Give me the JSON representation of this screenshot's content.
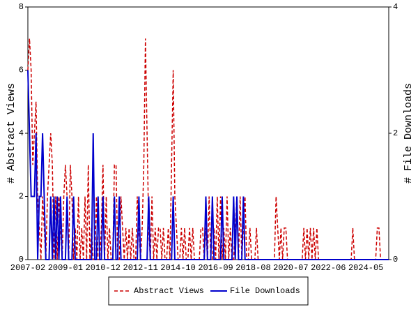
{
  "chart_data": {
    "type": "line",
    "y_label": "# Abstract Views",
    "y2_label": "# File Downloads",
    "categories": [
      "2007-02",
      null,
      null,
      null,
      null,
      null,
      null,
      null,
      null,
      null,
      null,
      null,
      null,
      null,
      null,
      null,
      null,
      null,
      null,
      null,
      null,
      null,
      null,
      "2009-01",
      null,
      null,
      null,
      null,
      null,
      null,
      null,
      null,
      null,
      null,
      null,
      null,
      null,
      null,
      null,
      null,
      null,
      null,
      null,
      null,
      null,
      null,
      "2010-12",
      null,
      null,
      null,
      null,
      null,
      null,
      null,
      null,
      null,
      null,
      null,
      null,
      null,
      null,
      null,
      null,
      null,
      null,
      null,
      null,
      null,
      null,
      "2012-11",
      null,
      null,
      null,
      null,
      null,
      null,
      null,
      null,
      null,
      null,
      null,
      null,
      null,
      null,
      null,
      null,
      null,
      null,
      null,
      null,
      null,
      null,
      "2014-10",
      null,
      null,
      null,
      null,
      null,
      null,
      null,
      null,
      null,
      null,
      null,
      null,
      null,
      null,
      null,
      null,
      null,
      null,
      null,
      null,
      null,
      null,
      "2016-09",
      null,
      null,
      null,
      null,
      null,
      null,
      null,
      null,
      null,
      null,
      null,
      null,
      null,
      null,
      null,
      null,
      null,
      null,
      null,
      null,
      null,
      null,
      "2018-08",
      null,
      null,
      null,
      null,
      null,
      null,
      null,
      null,
      null,
      null,
      null,
      null,
      null,
      null,
      null,
      null,
      null,
      null,
      null,
      null,
      null,
      null,
      "2020-07",
      null,
      null,
      null,
      null,
      null,
      null,
      null,
      null,
      null,
      null,
      null,
      null,
      null,
      null,
      null,
      null,
      null,
      null,
      null,
      null,
      null,
      null,
      "2022-06",
      null,
      null,
      null,
      null,
      null,
      null,
      null,
      null,
      null,
      null,
      null,
      null,
      null,
      null,
      null,
      null,
      null,
      null,
      null,
      null,
      null,
      null,
      "2024-05",
      null,
      null,
      null,
      null,
      null,
      null,
      null,
      null,
      null,
      null,
      null,
      null,
      null,
      null
    ],
    "series": [
      {
        "name": "Abstract Views",
        "color": "#cc0000",
        "dashed": true,
        "axis": "y",
        "values": [
          6,
          7,
          6,
          3,
          4,
          5,
          2,
          1,
          0,
          2,
          1,
          0,
          2,
          3,
          4,
          3,
          0,
          2,
          0,
          2,
          1,
          0,
          2,
          3,
          2,
          0,
          3,
          2,
          0,
          1,
          0,
          2,
          0,
          1,
          0,
          2,
          0,
          3,
          0,
          1,
          0,
          0,
          2,
          0,
          0,
          1,
          3,
          0,
          2,
          0,
          1,
          0,
          0,
          3,
          3,
          0,
          0,
          2,
          1,
          0,
          1,
          0,
          1,
          0,
          1,
          0,
          0,
          2,
          1,
          0,
          1,
          3,
          7,
          4,
          1,
          0,
          2,
          0,
          1,
          0,
          1,
          1,
          0,
          1,
          0,
          0,
          1,
          0,
          3,
          6,
          2,
          1,
          0,
          0,
          1,
          0,
          1,
          0,
          0,
          1,
          0,
          1,
          0,
          0,
          0,
          0,
          1,
          1,
          0,
          1,
          0,
          2,
          0,
          0,
          1,
          0,
          2,
          0,
          2,
          0,
          1,
          0,
          2,
          0,
          1,
          0,
          0,
          1,
          2,
          0,
          2,
          0,
          1,
          2,
          0,
          0,
          1,
          0,
          0,
          0,
          1,
          0,
          0,
          0,
          0,
          0,
          0,
          0,
          0,
          0,
          0,
          0,
          2,
          1,
          0,
          1,
          0,
          1,
          1,
          0,
          0,
          0,
          0,
          0,
          0,
          0,
          0,
          0,
          0,
          1,
          0,
          1,
          0,
          1,
          0,
          1,
          0,
          1,
          0,
          0,
          0,
          0,
          0,
          0,
          0,
          0,
          0,
          0,
          0,
          0,
          0,
          0,
          0,
          0,
          0,
          0,
          0,
          0,
          0,
          1,
          0,
          0,
          0,
          0,
          0,
          0,
          0,
          0,
          0,
          0,
          0,
          0,
          0,
          0,
          1,
          1,
          0,
          0,
          0,
          0,
          0,
          0
        ]
      },
      {
        "name": "File Downloads",
        "color": "#0000cc",
        "dashed": false,
        "axis": "y2",
        "values": [
          3,
          2,
          1,
          1,
          1,
          2,
          0,
          1,
          1,
          2,
          1,
          0,
          0,
          0,
          1,
          0,
          1,
          0,
          1,
          0,
          1,
          0,
          0,
          0,
          1,
          0,
          0,
          0,
          1,
          0,
          0,
          0,
          0,
          0,
          0,
          0,
          0,
          0,
          0,
          0,
          2,
          0,
          0,
          1,
          0,
          0,
          1,
          0,
          0,
          0,
          0,
          0,
          0,
          1,
          0,
          0,
          1,
          0,
          0,
          0,
          0,
          0,
          0,
          0,
          0,
          0,
          0,
          0,
          1,
          0,
          0,
          0,
          0,
          0,
          1,
          0,
          0,
          0,
          0,
          0,
          0,
          0,
          0,
          0,
          0,
          0,
          0,
          0,
          0,
          1,
          0,
          0,
          0,
          0,
          0,
          0,
          0,
          0,
          0,
          0,
          0,
          0,
          0,
          0,
          0,
          0,
          0,
          0,
          0,
          1,
          0,
          0,
          0,
          1,
          0,
          0,
          0,
          0,
          0,
          1,
          0,
          0,
          0,
          0,
          0,
          0,
          1,
          0,
          1,
          0,
          0,
          0,
          1,
          0,
          0,
          0,
          0,
          0,
          0,
          0,
          0,
          0,
          0,
          0,
          0,
          0,
          0,
          0,
          0,
          0,
          0,
          0,
          0,
          0,
          0,
          0,
          0,
          0,
          0,
          0,
          0,
          0,
          0,
          0,
          0,
          0,
          0,
          0,
          0,
          0,
          0,
          0,
          0,
          0,
          0,
          0,
          0,
          0,
          0,
          0,
          0,
          0,
          0,
          0,
          0,
          0,
          0,
          0,
          0,
          0,
          0,
          0,
          0,
          0,
          0,
          0,
          0,
          0,
          0,
          0,
          0,
          0,
          0,
          0,
          0,
          0,
          0,
          0,
          0,
          0,
          0,
          0,
          0,
          0,
          0,
          0,
          0,
          0,
          0,
          0,
          0,
          0
        ]
      }
    ],
    "ylim": [
      0,
      8
    ],
    "yticks": [
      0,
      2,
      4,
      6,
      8
    ],
    "y2lim": [
      0,
      4
    ],
    "y2ticks": [
      0,
      2,
      4
    ],
    "legend": "bottom"
  }
}
